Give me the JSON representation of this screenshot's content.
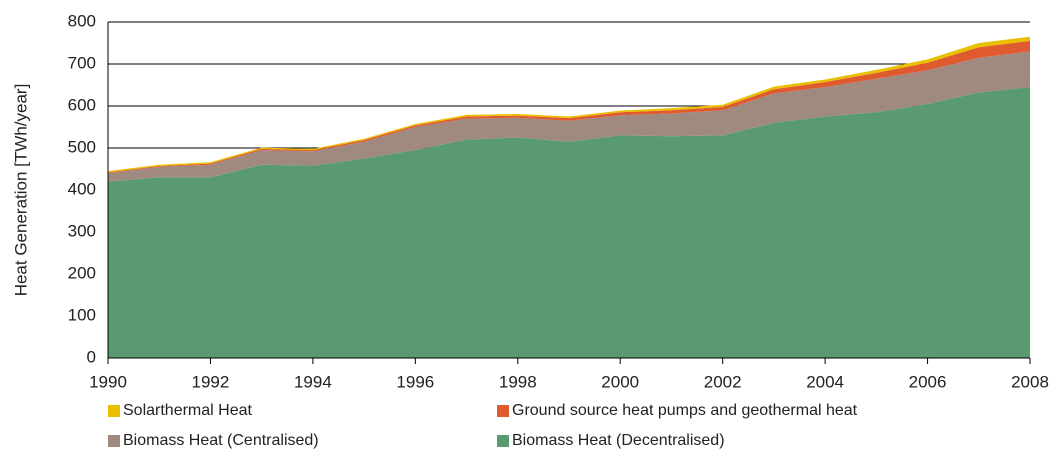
{
  "chart_data": {
    "type": "stacked_area",
    "y_label": "Heat Generation  [TWh/year]",
    "x": [
      1990,
      1991,
      1992,
      1993,
      1994,
      1995,
      1996,
      1997,
      1998,
      1999,
      2000,
      2001,
      2002,
      2003,
      2004,
      2005,
      2006,
      2007,
      2008
    ],
    "xlim": [
      1990,
      2008
    ],
    "xticks": [
      1990,
      1992,
      1994,
      1996,
      1998,
      2000,
      2002,
      2004,
      2006,
      2008
    ],
    "ylim": [
      0,
      800
    ],
    "yticks": [
      0,
      100,
      200,
      300,
      400,
      500,
      600,
      700,
      800
    ],
    "grid": true,
    "series": [
      {
        "name": "Solarthermal Heat",
        "color": "#e8c000",
        "values": [
          3,
          3,
          3,
          3,
          3,
          3,
          3,
          4,
          4,
          4,
          4,
          5,
          5,
          6,
          6,
          7,
          8,
          10,
          10
        ]
      },
      {
        "name": "Ground source heat pumps and geothermal heat",
        "color": "#e05a30",
        "values": [
          2,
          2,
          3,
          3,
          3,
          4,
          4,
          5,
          5,
          6,
          7,
          8,
          8,
          10,
          12,
          14,
          18,
          25,
          25
        ]
      },
      {
        "name": "Biomass Heat (Centralised)",
        "color": "#a08a80",
        "values": [
          20,
          25,
          30,
          35,
          34,
          40,
          55,
          50,
          47,
          50,
          48,
          54,
          60,
          70,
          70,
          80,
          80,
          83,
          85
        ]
      },
      {
        "name": "Biomass Heat (Decentralised)",
        "color": "#5a9a70",
        "values": [
          420,
          430,
          430,
          460,
          458,
          475,
          495,
          520,
          525,
          515,
          530,
          528,
          530,
          560,
          575,
          585,
          605,
          632,
          645
        ]
      }
    ]
  }
}
